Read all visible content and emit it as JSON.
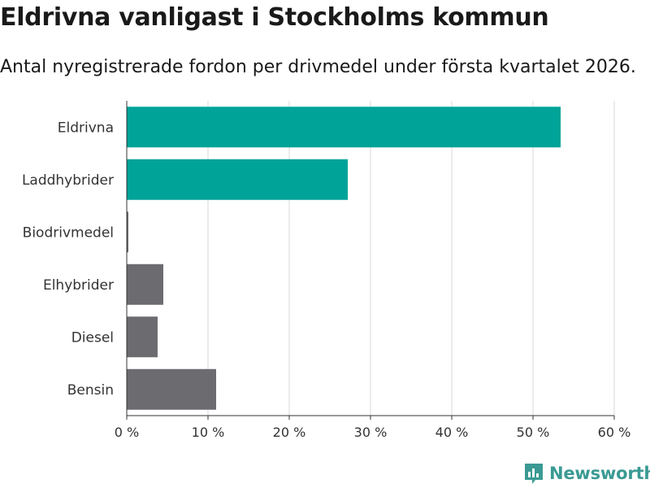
{
  "header": {
    "title": "Eldrivna vanligast i Stockholms kommun",
    "subtitle": "Antal nyregistrerade fordon per drivmedel under första kvartalet 2026."
  },
  "chart_data": {
    "type": "bar",
    "orientation": "horizontal",
    "categories": [
      "Eldrivna",
      "Laddhybrider",
      "Biodrivmedel",
      "Elhybrider",
      "Diesel",
      "Bensin"
    ],
    "values": [
      53.4,
      27.2,
      0.2,
      4.5,
      3.8,
      11.0
    ],
    "colors": [
      "#00a398",
      "#00a398",
      "#6c6b70",
      "#6c6b70",
      "#6c6b70",
      "#6c6b70"
    ],
    "xlim": [
      0,
      60
    ],
    "xticks": [
      0,
      10,
      20,
      30,
      40,
      50,
      60
    ],
    "xtick_labels": [
      "0 %",
      "10 %",
      "20 %",
      "30 %",
      "40 %",
      "50 %",
      "60 %"
    ],
    "unit": "%",
    "grid": true,
    "title": "Eldrivna vanligast i Stockholms kommun",
    "xlabel": "",
    "ylabel": ""
  },
  "brand": {
    "name": "Newsworthy",
    "icon": "newsworthy-logo-icon",
    "color": "#3a9a93"
  }
}
